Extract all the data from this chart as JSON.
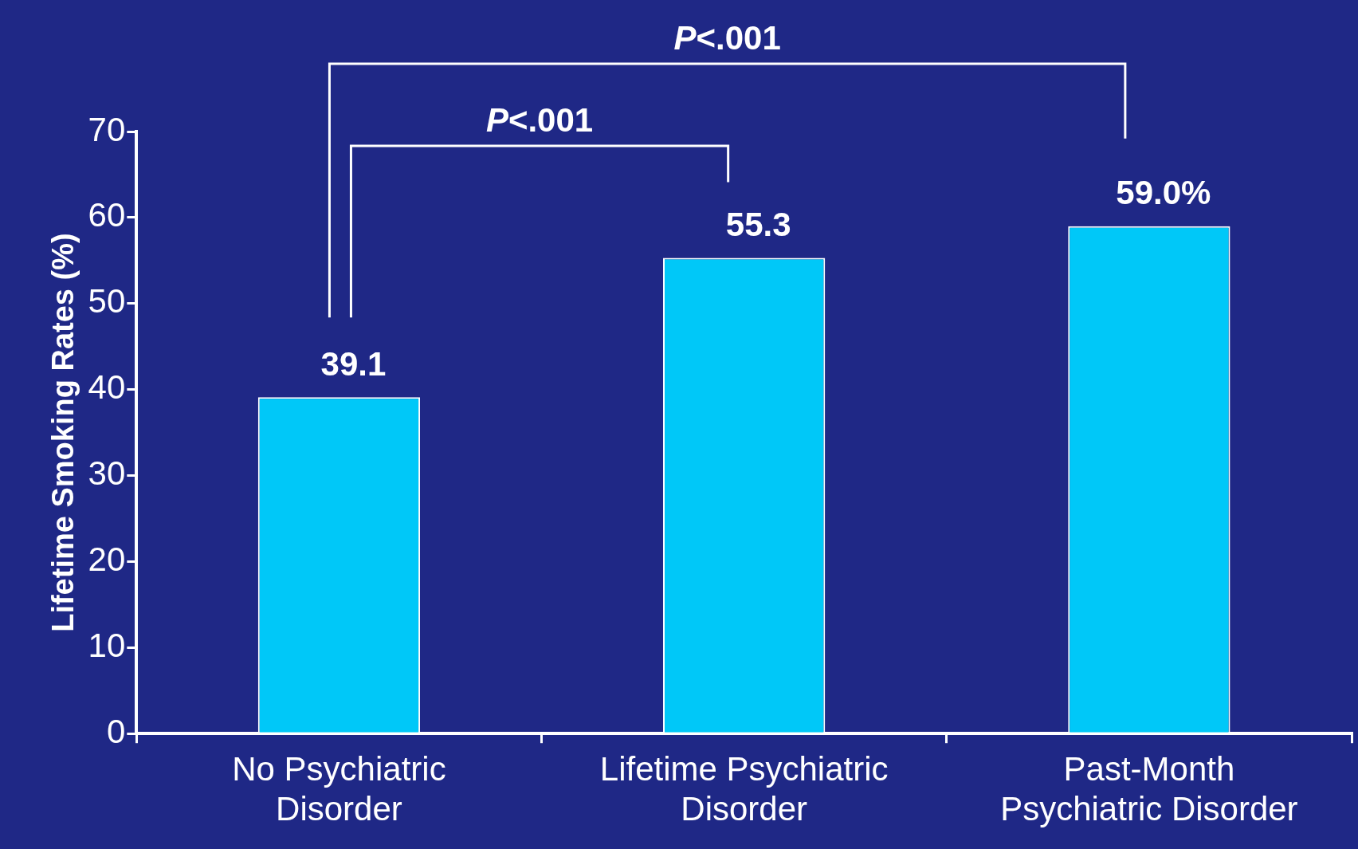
{
  "chart_data": {
    "type": "bar",
    "ylabel": "Lifetime Smoking Rates (%)",
    "categories": [
      "No Psychiatric Disorder",
      "Lifetime Psychiatric Disorder",
      "Past-Month Psychiatric Disorder"
    ],
    "values": [
      39.1,
      55.3,
      59.0
    ],
    "value_labels": [
      "39.1",
      "55.3",
      "59.0%"
    ],
    "color": "#00c8f8",
    "ylim": [
      0,
      70
    ],
    "yticks": [
      0,
      10,
      20,
      30,
      40,
      50,
      60,
      70
    ],
    "grid": false,
    "legend": false,
    "annotations": [
      "P<.001",
      "P<.001"
    ]
  }
}
